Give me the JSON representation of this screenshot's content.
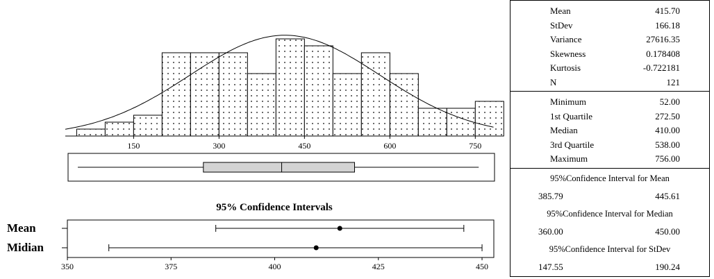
{
  "chart_data": [
    {
      "type": "histogram",
      "x_ticks": [
        150,
        300,
        450,
        600,
        750
      ],
      "xlim": [
        30,
        785
      ],
      "bin_width": 50,
      "bins": [
        {
          "start": 50,
          "count": 1
        },
        {
          "start": 100,
          "count": 2
        },
        {
          "start": 150,
          "count": 3
        },
        {
          "start": 200,
          "count": 12
        },
        {
          "start": 250,
          "count": 12
        },
        {
          "start": 300,
          "count": 12
        },
        {
          "start": 350,
          "count": 9
        },
        {
          "start": 400,
          "count": 14
        },
        {
          "start": 450,
          "count": 13
        },
        {
          "start": 500,
          "count": 9
        },
        {
          "start": 550,
          "count": 12
        },
        {
          "start": 600,
          "count": 9
        },
        {
          "start": 650,
          "count": 4
        },
        {
          "start": 700,
          "count": 4
        },
        {
          "start": 750,
          "count": 5
        }
      ],
      "normal_curve": {
        "mean": 415.7,
        "stdev": 166.18
      }
    },
    {
      "type": "boxplot",
      "min": 52.0,
      "q1": 272.5,
      "median": 410.0,
      "q3": 538.0,
      "max": 756.0
    },
    {
      "type": "interval",
      "title": "95% Confidence Intervals",
      "x_ticks": [
        350,
        375,
        400,
        425,
        450
      ],
      "xlim": [
        350,
        451
      ],
      "intervals": [
        {
          "label": "Mean",
          "low": 385.79,
          "high": 445.61,
          "point": 415.7
        },
        {
          "label": "Midian",
          "low": 360.0,
          "high": 450.0,
          "point": 410.0
        }
      ]
    }
  ],
  "stats": {
    "basic": [
      {
        "label": "Mean",
        "value": "415.70"
      },
      {
        "label": "StDev",
        "value": "166.18"
      },
      {
        "label": "Variance",
        "value": "27616.35"
      },
      {
        "label": "Skewness",
        "value": "0.178408"
      },
      {
        "label": "Kurtosis",
        "value": "-0.722181"
      },
      {
        "label": "N",
        "value": "121"
      }
    ],
    "quartiles": [
      {
        "label": "Minimum",
        "value": "52.00"
      },
      {
        "label": "1st Quartile",
        "value": "272.50"
      },
      {
        "label": "Median",
        "value": "410.00"
      },
      {
        "label": "3rd Quartile",
        "value": "538.00"
      },
      {
        "label": "Maximum",
        "value": "756.00"
      }
    ],
    "ci": [
      {
        "title": "95%Confidence Interval for Mean",
        "low": "385.79",
        "high": "445.61"
      },
      {
        "title": "95%Confidence Interval for Median",
        "low": "360.00",
        "high": "450.00"
      },
      {
        "title": "95%Confidence Interval for StDev",
        "low": "147.55",
        "high": "190.24"
      }
    ]
  }
}
